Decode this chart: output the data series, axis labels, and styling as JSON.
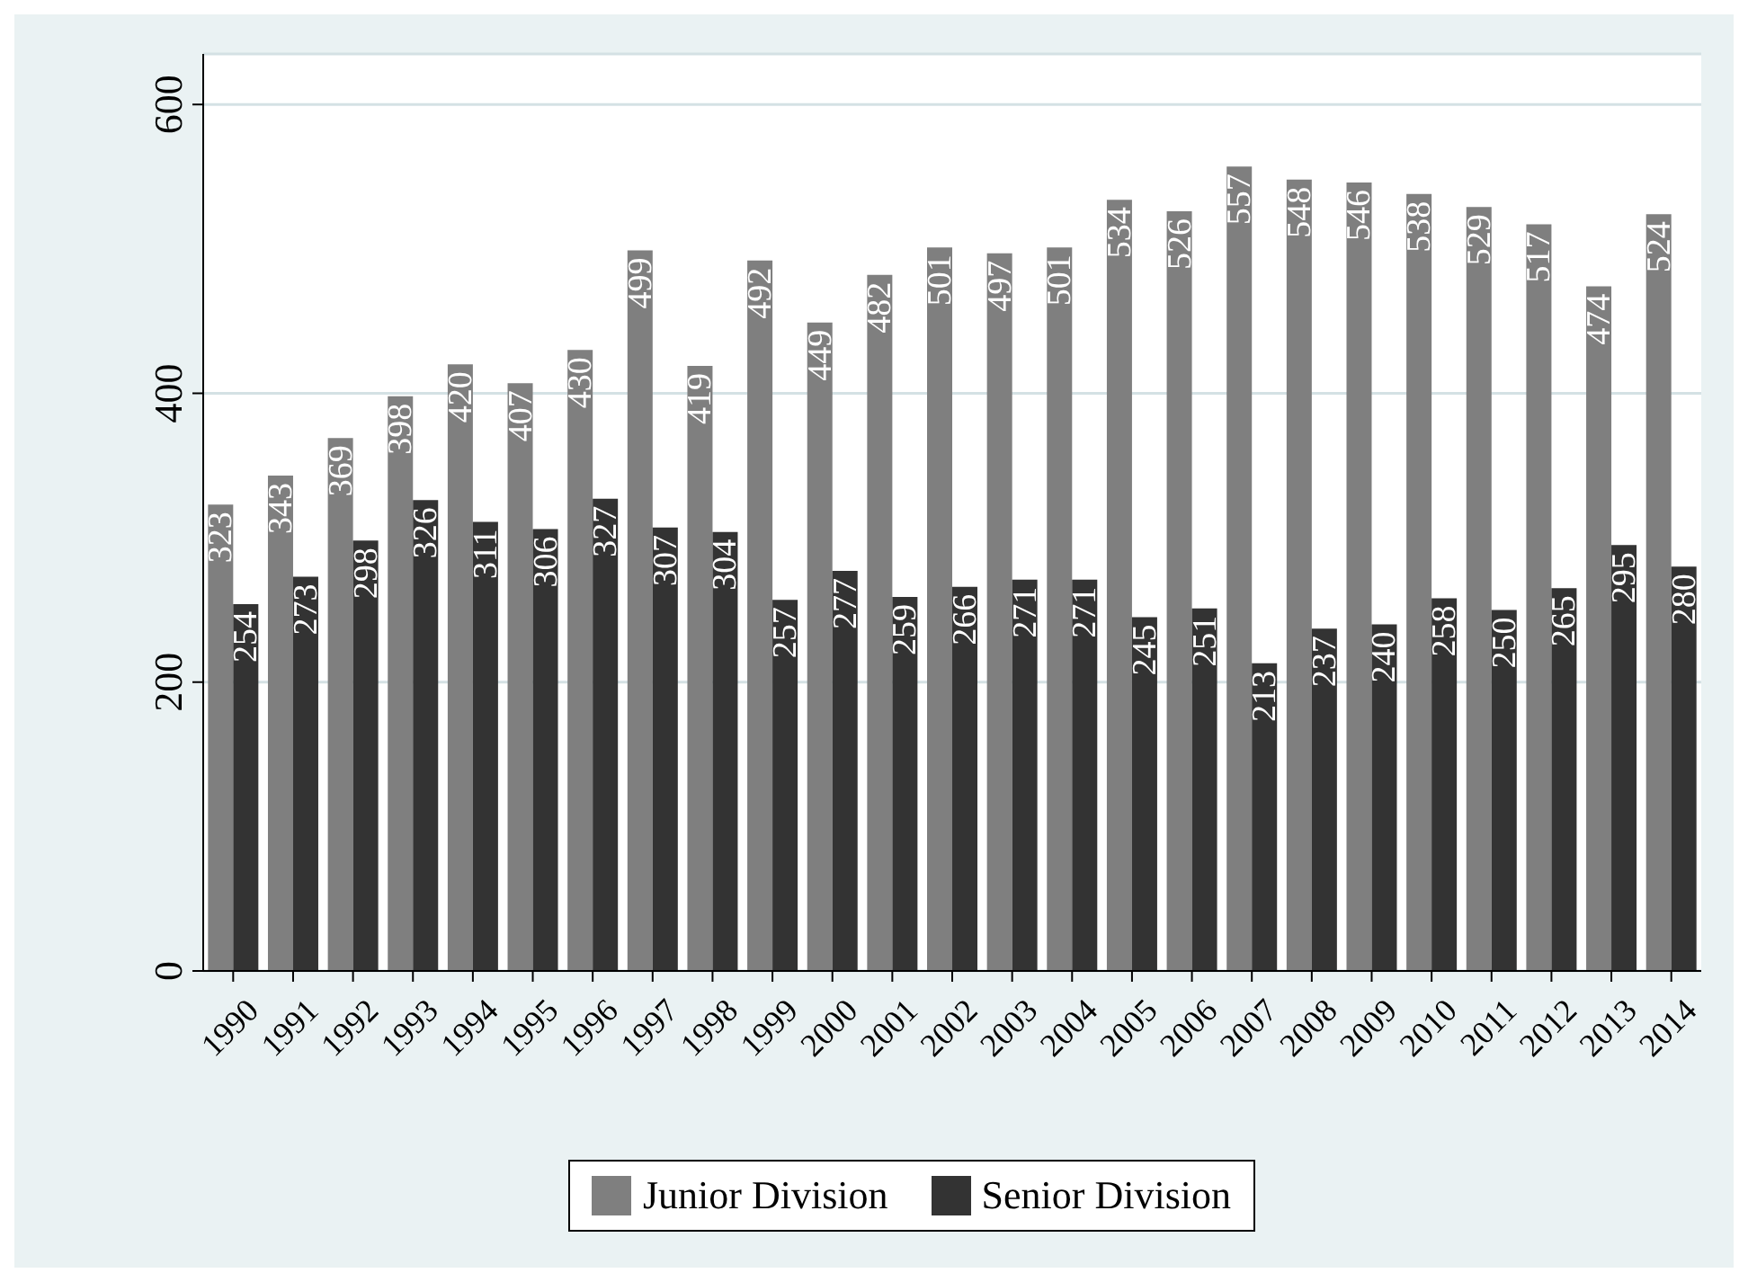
{
  "chart_data": {
    "type": "bar",
    "categories": [
      "1990",
      "1991",
      "1992",
      "1993",
      "1994",
      "1995",
      "1996",
      "1997",
      "1998",
      "1999",
      "2000",
      "2001",
      "2002",
      "2003",
      "2004",
      "2005",
      "2006",
      "2007",
      "2008",
      "2009",
      "2010",
      "2011",
      "2012",
      "2013",
      "2014"
    ],
    "series": [
      {
        "name": "Junior Division",
        "color": "#7f7f7f",
        "values": [
          323,
          343,
          369,
          398,
          420,
          407,
          430,
          499,
          419,
          492,
          449,
          482,
          501,
          497,
          501,
          534,
          526,
          557,
          548,
          546,
          538,
          529,
          517,
          474,
          524
        ]
      },
      {
        "name": "Senior Division",
        "color": "#333333",
        "values": [
          254,
          273,
          298,
          326,
          311,
          306,
          327,
          307,
          304,
          257,
          277,
          259,
          266,
          271,
          271,
          245,
          251,
          213,
          237,
          240,
          258,
          250,
          265,
          295,
          280
        ]
      }
    ],
    "ylim": [
      0,
      635
    ],
    "yticks": [
      0,
      200,
      400,
      600
    ],
    "grid": "y",
    "legend": "bottom",
    "data_labels": true
  }
}
